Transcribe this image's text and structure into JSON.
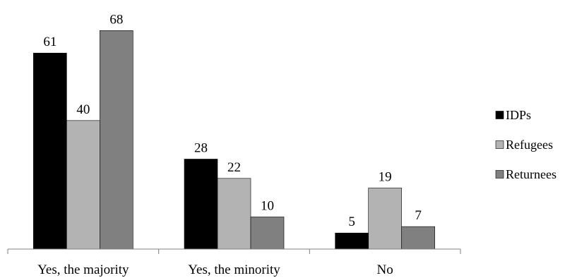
{
  "chart_data": {
    "type": "bar",
    "categories": [
      "Yes, the majority",
      "Yes, the minority",
      "No"
    ],
    "series": [
      {
        "name": "IDPs",
        "values": [
          61,
          28,
          5
        ],
        "color": "#000000"
      },
      {
        "name": "Refugees",
        "values": [
          40,
          22,
          19
        ],
        "color": "#b3b3b3"
      },
      {
        "name": "Returnees",
        "values": [
          68,
          10,
          7
        ],
        "color": "#808080"
      }
    ],
    "ylim": [
      0,
      74
    ],
    "grid": false,
    "data_labels": true,
    "legend_position": "right"
  }
}
